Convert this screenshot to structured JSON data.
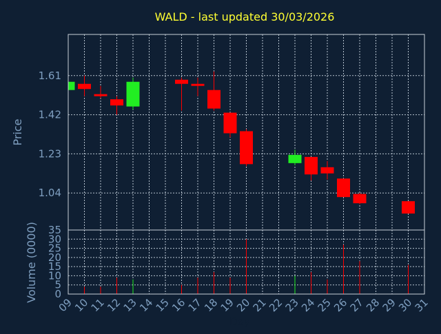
{
  "chart_data": {
    "type": "candlestick",
    "title": "WALD - last updated 30/03/2026",
    "xlabel": "Day",
    "price_panel": {
      "ylabel": "Price",
      "yticks": [
        "1.61",
        "1.42",
        "1.23",
        "1.04"
      ],
      "ylim": [
        0.86,
        1.81
      ]
    },
    "volume_panel": {
      "ylabel": "Volume (0000)",
      "yticks": [
        "0",
        "5",
        "10",
        "15",
        "20",
        "25",
        "30",
        "35"
      ],
      "ylim": [
        0,
        35
      ]
    },
    "x_ticks": [
      "09",
      "10",
      "11",
      "12",
      "13",
      "14",
      "15",
      "16",
      "17",
      "18",
      "19",
      "20",
      "21",
      "22",
      "23",
      "24",
      "25",
      "26",
      "27",
      "28",
      "29",
      "30",
      "31"
    ],
    "xlim": [
      9,
      31
    ],
    "colors": {
      "up": "#22ee22",
      "down": "#ff0000",
      "title": "#ffff33",
      "axis_text": "#7f9fc0",
      "background": "#0f1f33"
    },
    "candles": [
      {
        "day": 9,
        "open": 1.54,
        "high": 1.58,
        "low": 1.54,
        "close": 1.58,
        "volume": 0
      },
      {
        "day": 10,
        "open": 1.57,
        "high": 1.61,
        "low": 1.51,
        "close": 1.545,
        "volume": 4
      },
      {
        "day": 11,
        "open": 1.52,
        "high": 1.56,
        "low": 1.5,
        "close": 1.51,
        "volume": 4
      },
      {
        "day": 12,
        "open": 1.495,
        "high": 1.51,
        "low": 1.42,
        "close": 1.465,
        "volume": 9
      },
      {
        "day": 13,
        "open": 1.46,
        "high": 1.6,
        "low": 1.445,
        "close": 1.58,
        "volume": 8
      },
      {
        "day": 16,
        "open": 1.59,
        "high": 1.6,
        "low": 1.44,
        "close": 1.57,
        "volume": 5
      },
      {
        "day": 17,
        "open": 1.57,
        "high": 1.6,
        "low": 1.51,
        "close": 1.56,
        "volume": 9
      },
      {
        "day": 18,
        "open": 1.54,
        "high": 1.63,
        "low": 1.44,
        "close": 1.45,
        "volume": 12
      },
      {
        "day": 19,
        "open": 1.43,
        "high": 1.43,
        "low": 1.31,
        "close": 1.33,
        "volume": 9
      },
      {
        "day": 20,
        "open": 1.34,
        "high": 1.35,
        "low": 1.17,
        "close": 1.18,
        "volume": 30
      },
      {
        "day": 23,
        "open": 1.185,
        "high": 1.25,
        "low": 1.175,
        "close": 1.225,
        "volume": 10
      },
      {
        "day": 24,
        "open": 1.215,
        "high": 1.215,
        "low": 1.1,
        "close": 1.13,
        "volume": 12
      },
      {
        "day": 25,
        "open": 1.165,
        "high": 1.195,
        "low": 1.105,
        "close": 1.135,
        "volume": 8
      },
      {
        "day": 26,
        "open": 1.11,
        "high": 1.11,
        "low": 1.02,
        "close": 1.02,
        "volume": 27
      },
      {
        "day": 27,
        "open": 1.035,
        "high": 1.04,
        "low": 0.985,
        "close": 0.99,
        "volume": 18
      },
      {
        "day": 30,
        "open": 1.0,
        "high": 1.0,
        "low": 0.94,
        "close": 0.94,
        "volume": 16
      }
    ]
  }
}
